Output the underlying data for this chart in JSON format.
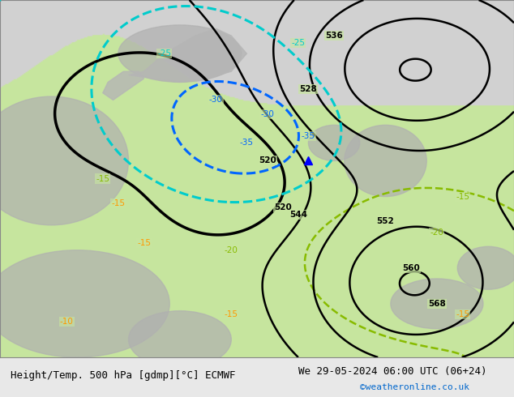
{
  "title_left": "Height/Temp. 500 hPa [gdmp][°C] ECMWF",
  "title_right": "We 29-05-2024 06:00 UTC (06+24)",
  "credit": "©weatheronline.co.uk",
  "background_map_color": "#c8e6a0",
  "land_gray_color": "#b8b8b8",
  "background_top_color": "#d8d8d8",
  "z500_color": "#000000",
  "temp_cyan_color": "#00cccc",
  "temp_blue_color": "#0066ff",
  "temp_green_color": "#88bb00",
  "temp_orange_color": "#ff9900",
  "title_color": "#000000",
  "credit_color": "#0066cc",
  "font_size_title": 9,
  "font_size_credit": 8,
  "fig_width": 6.34,
  "fig_height": 4.9,
  "dpi": 100
}
